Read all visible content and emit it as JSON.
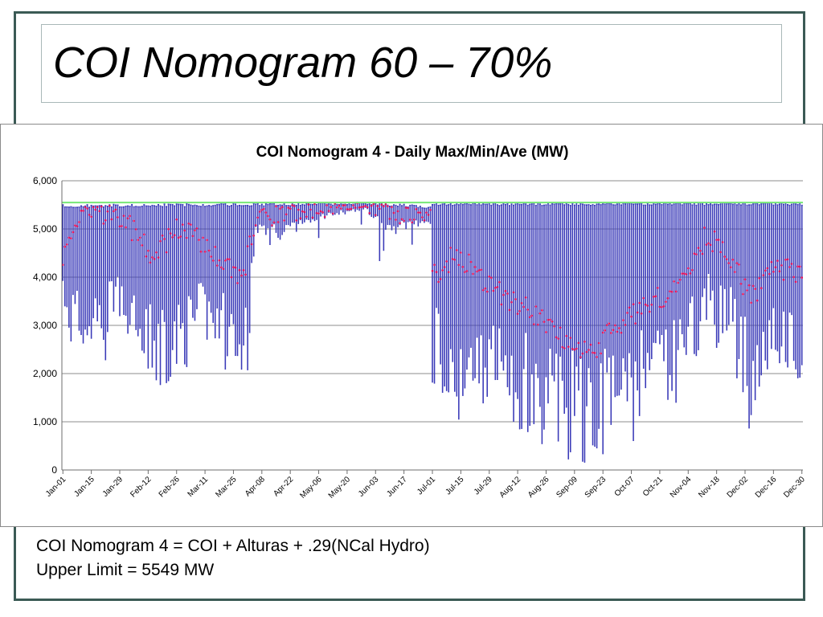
{
  "slide": {
    "title": "COI Nomogram  60 – 70%",
    "caption_line1": "COI Nomogram 4 = COI + Alturas + .29(NCal Hydro)",
    "caption_line2": "Upper Limit = 5549 MW"
  },
  "colors": {
    "range_bar": "#3a3ab8",
    "average_marker": "#e0105a",
    "limit_line": "#7ee87e",
    "grid": "#8c8c8c",
    "frame": "#3b5a55"
  },
  "chart_data": {
    "type": "range_bar",
    "title": "COI Nomogram 4 - Daily Max/Min/Ave (MW)",
    "xlabel": "",
    "ylabel": "",
    "ylim": [
      0,
      6000
    ],
    "y_ticks": [
      "0",
      "1,000",
      "2,000",
      "3,000",
      "4,000",
      "5,000",
      "6,000"
    ],
    "y_tick_values": [
      0,
      1000,
      2000,
      3000,
      4000,
      5000,
      6000
    ],
    "x_tick_labels": [
      "Jan-01",
      "Jan-15",
      "Jan-29",
      "Feb-12",
      "Feb-26",
      "Mar-11",
      "Mar-25",
      "Apr-08",
      "Apr-22",
      "May-06",
      "May-20",
      "Jun-03",
      "Jun-17",
      "Jul-01",
      "Jul-15",
      "Jul-29",
      "Aug-12",
      "Aug-26",
      "Sep-09",
      "Sep-23",
      "Oct-07",
      "Oct-21",
      "Nov-04",
      "Nov-18",
      "Dec-02",
      "Dec-16",
      "Dec-30"
    ],
    "x_tick_days": [
      1,
      15,
      29,
      43,
      57,
      71,
      85,
      99,
      113,
      127,
      141,
      155,
      169,
      183,
      197,
      211,
      225,
      239,
      253,
      267,
      281,
      295,
      309,
      323,
      337,
      351,
      365
    ],
    "upper_limit": 5549,
    "grid": true,
    "legend": "none",
    "days_shown": 365,
    "series": [
      {
        "name": "Max",
        "envelope": [
          [
            1,
            5500
          ],
          [
            60,
            5520
          ],
          [
            120,
            5540
          ],
          [
            150,
            5560
          ],
          [
            182,
            5480
          ],
          [
            183,
            5540
          ],
          [
            365,
            5549
          ]
        ]
      },
      {
        "name": "Min",
        "envelope": [
          [
            1,
            3200
          ],
          [
            15,
            2700
          ],
          [
            30,
            3500
          ],
          [
            40,
            2500
          ],
          [
            55,
            2300
          ],
          [
            70,
            3100
          ],
          [
            85,
            2600
          ],
          [
            92,
            2400
          ],
          [
            96,
            5000
          ],
          [
            110,
            4900
          ],
          [
            120,
            5100
          ],
          [
            135,
            5300
          ],
          [
            150,
            5400
          ],
          [
            160,
            5000
          ],
          [
            175,
            5100
          ],
          [
            182,
            5000
          ],
          [
            183,
            2400
          ],
          [
            195,
            1700
          ],
          [
            215,
            1900
          ],
          [
            235,
            1300
          ],
          [
            250,
            1000
          ],
          [
            260,
            900
          ],
          [
            275,
            1200
          ],
          [
            290,
            1600
          ],
          [
            305,
            2100
          ],
          [
            318,
            3300
          ],
          [
            330,
            2900
          ],
          [
            340,
            1500
          ],
          [
            350,
            2800
          ],
          [
            365,
            2200
          ]
        ]
      },
      {
        "name": "Ave",
        "envelope": [
          [
            1,
            4400
          ],
          [
            10,
            5350
          ],
          [
            30,
            5300
          ],
          [
            45,
            4400
          ],
          [
            60,
            5100
          ],
          [
            75,
            4500
          ],
          [
            90,
            4000
          ],
          [
            96,
            5250
          ],
          [
            110,
            5300
          ],
          [
            130,
            5400
          ],
          [
            150,
            5500
          ],
          [
            165,
            5350
          ],
          [
            182,
            5300
          ],
          [
            183,
            4000
          ],
          [
            195,
            4500
          ],
          [
            215,
            3700
          ],
          [
            235,
            3200
          ],
          [
            250,
            2700
          ],
          [
            260,
            2400
          ],
          [
            275,
            3000
          ],
          [
            290,
            3500
          ],
          [
            305,
            3800
          ],
          [
            318,
            4900
          ],
          [
            330,
            4400
          ],
          [
            340,
            3500
          ],
          [
            350,
            4300
          ],
          [
            365,
            4000
          ]
        ]
      }
    ]
  }
}
